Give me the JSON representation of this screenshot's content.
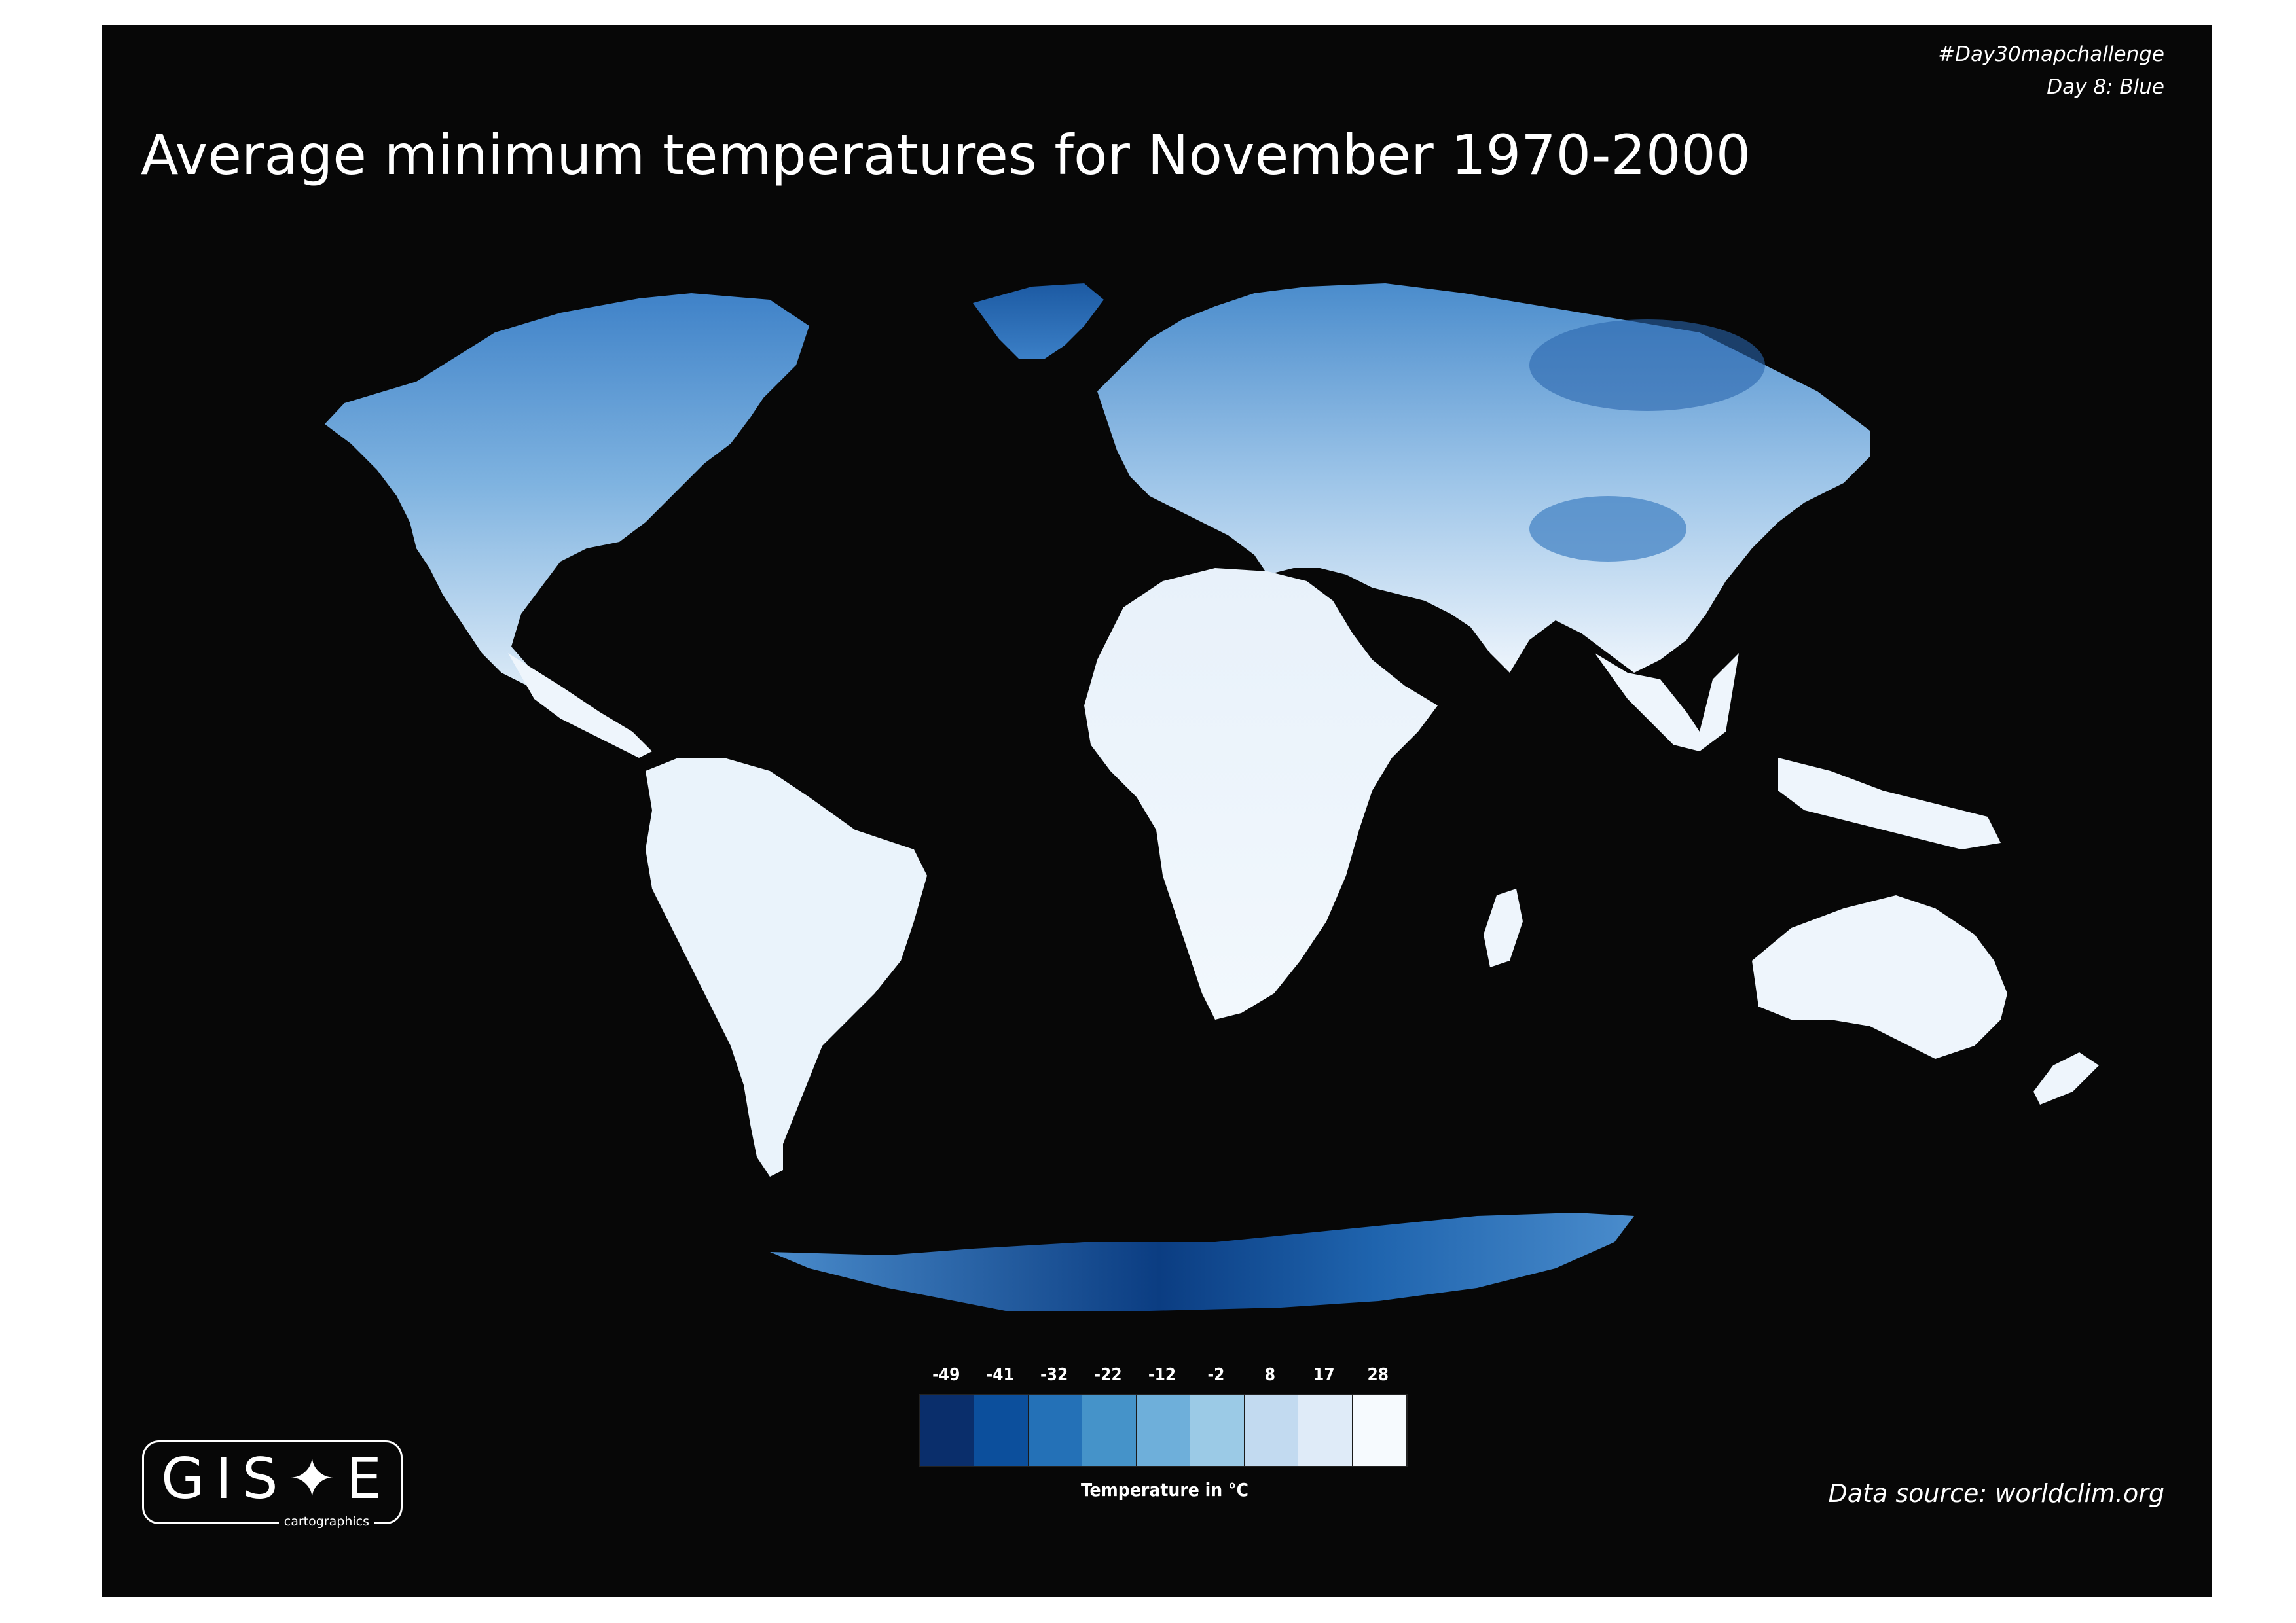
{
  "hashtag": {
    "line1": "#Day30mapchallenge",
    "line2": "Day 8: Blue"
  },
  "title": "Average minimum temperatures for November 1970-2000",
  "map": {
    "subject": "world map",
    "land_colors": {
      "cold": "#0b3d82",
      "mid": "#5a9bd6",
      "warm": "#eef5fc"
    },
    "ocean_color": "#070707"
  },
  "legend": {
    "ticks": [
      "-49",
      "-41",
      "-32",
      "-22",
      "-12",
      "-2",
      "8",
      "17",
      "28"
    ],
    "colors": [
      "#0a2e6b",
      "#0c4f9c",
      "#2471b7",
      "#4593c9",
      "#6eafda",
      "#9bcae6",
      "#c2daf0",
      "#dfebf8",
      "#f6fafe"
    ],
    "label": "Temperature in °C"
  },
  "logo": {
    "text": "GIS✦E",
    "subtitle": "cartographics"
  },
  "source": "Data source: worldclim.org"
}
